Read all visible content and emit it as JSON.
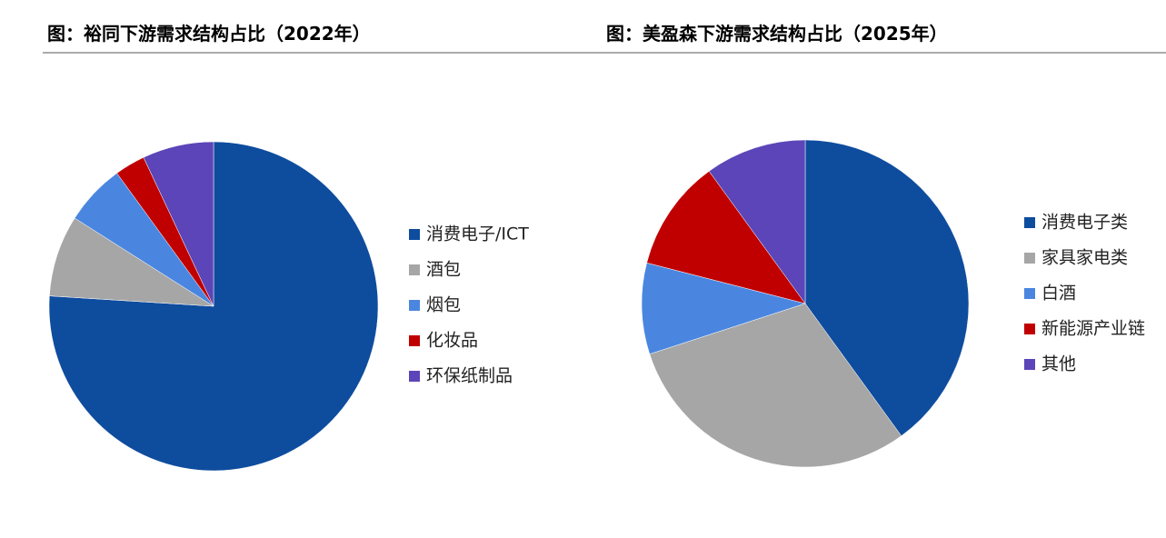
{
  "chart_data": [
    {
      "type": "pie",
      "title": "图：裕同下游需求结构占比（2022年）",
      "categories": [
        "消费电子/ICT",
        "酒包",
        "烟包",
        "化妆品",
        "环保纸制品"
      ],
      "values": [
        76,
        8,
        6,
        3,
        7
      ],
      "colors": [
        "#0e4c9e",
        "#a6a6a6",
        "#4a86e0",
        "#c00000",
        "#5b45b8"
      ]
    },
    {
      "type": "pie",
      "title": "图：美盈森下游需求结构占比（2025年）",
      "categories": [
        "消费电子类",
        "家具家电类",
        "白酒",
        "新能源产业链",
        "其他"
      ],
      "values": [
        40,
        30,
        9,
        11,
        10
      ],
      "colors": [
        "#0e4c9e",
        "#a6a6a6",
        "#4a86e0",
        "#c00000",
        "#5b45b8"
      ]
    }
  ]
}
